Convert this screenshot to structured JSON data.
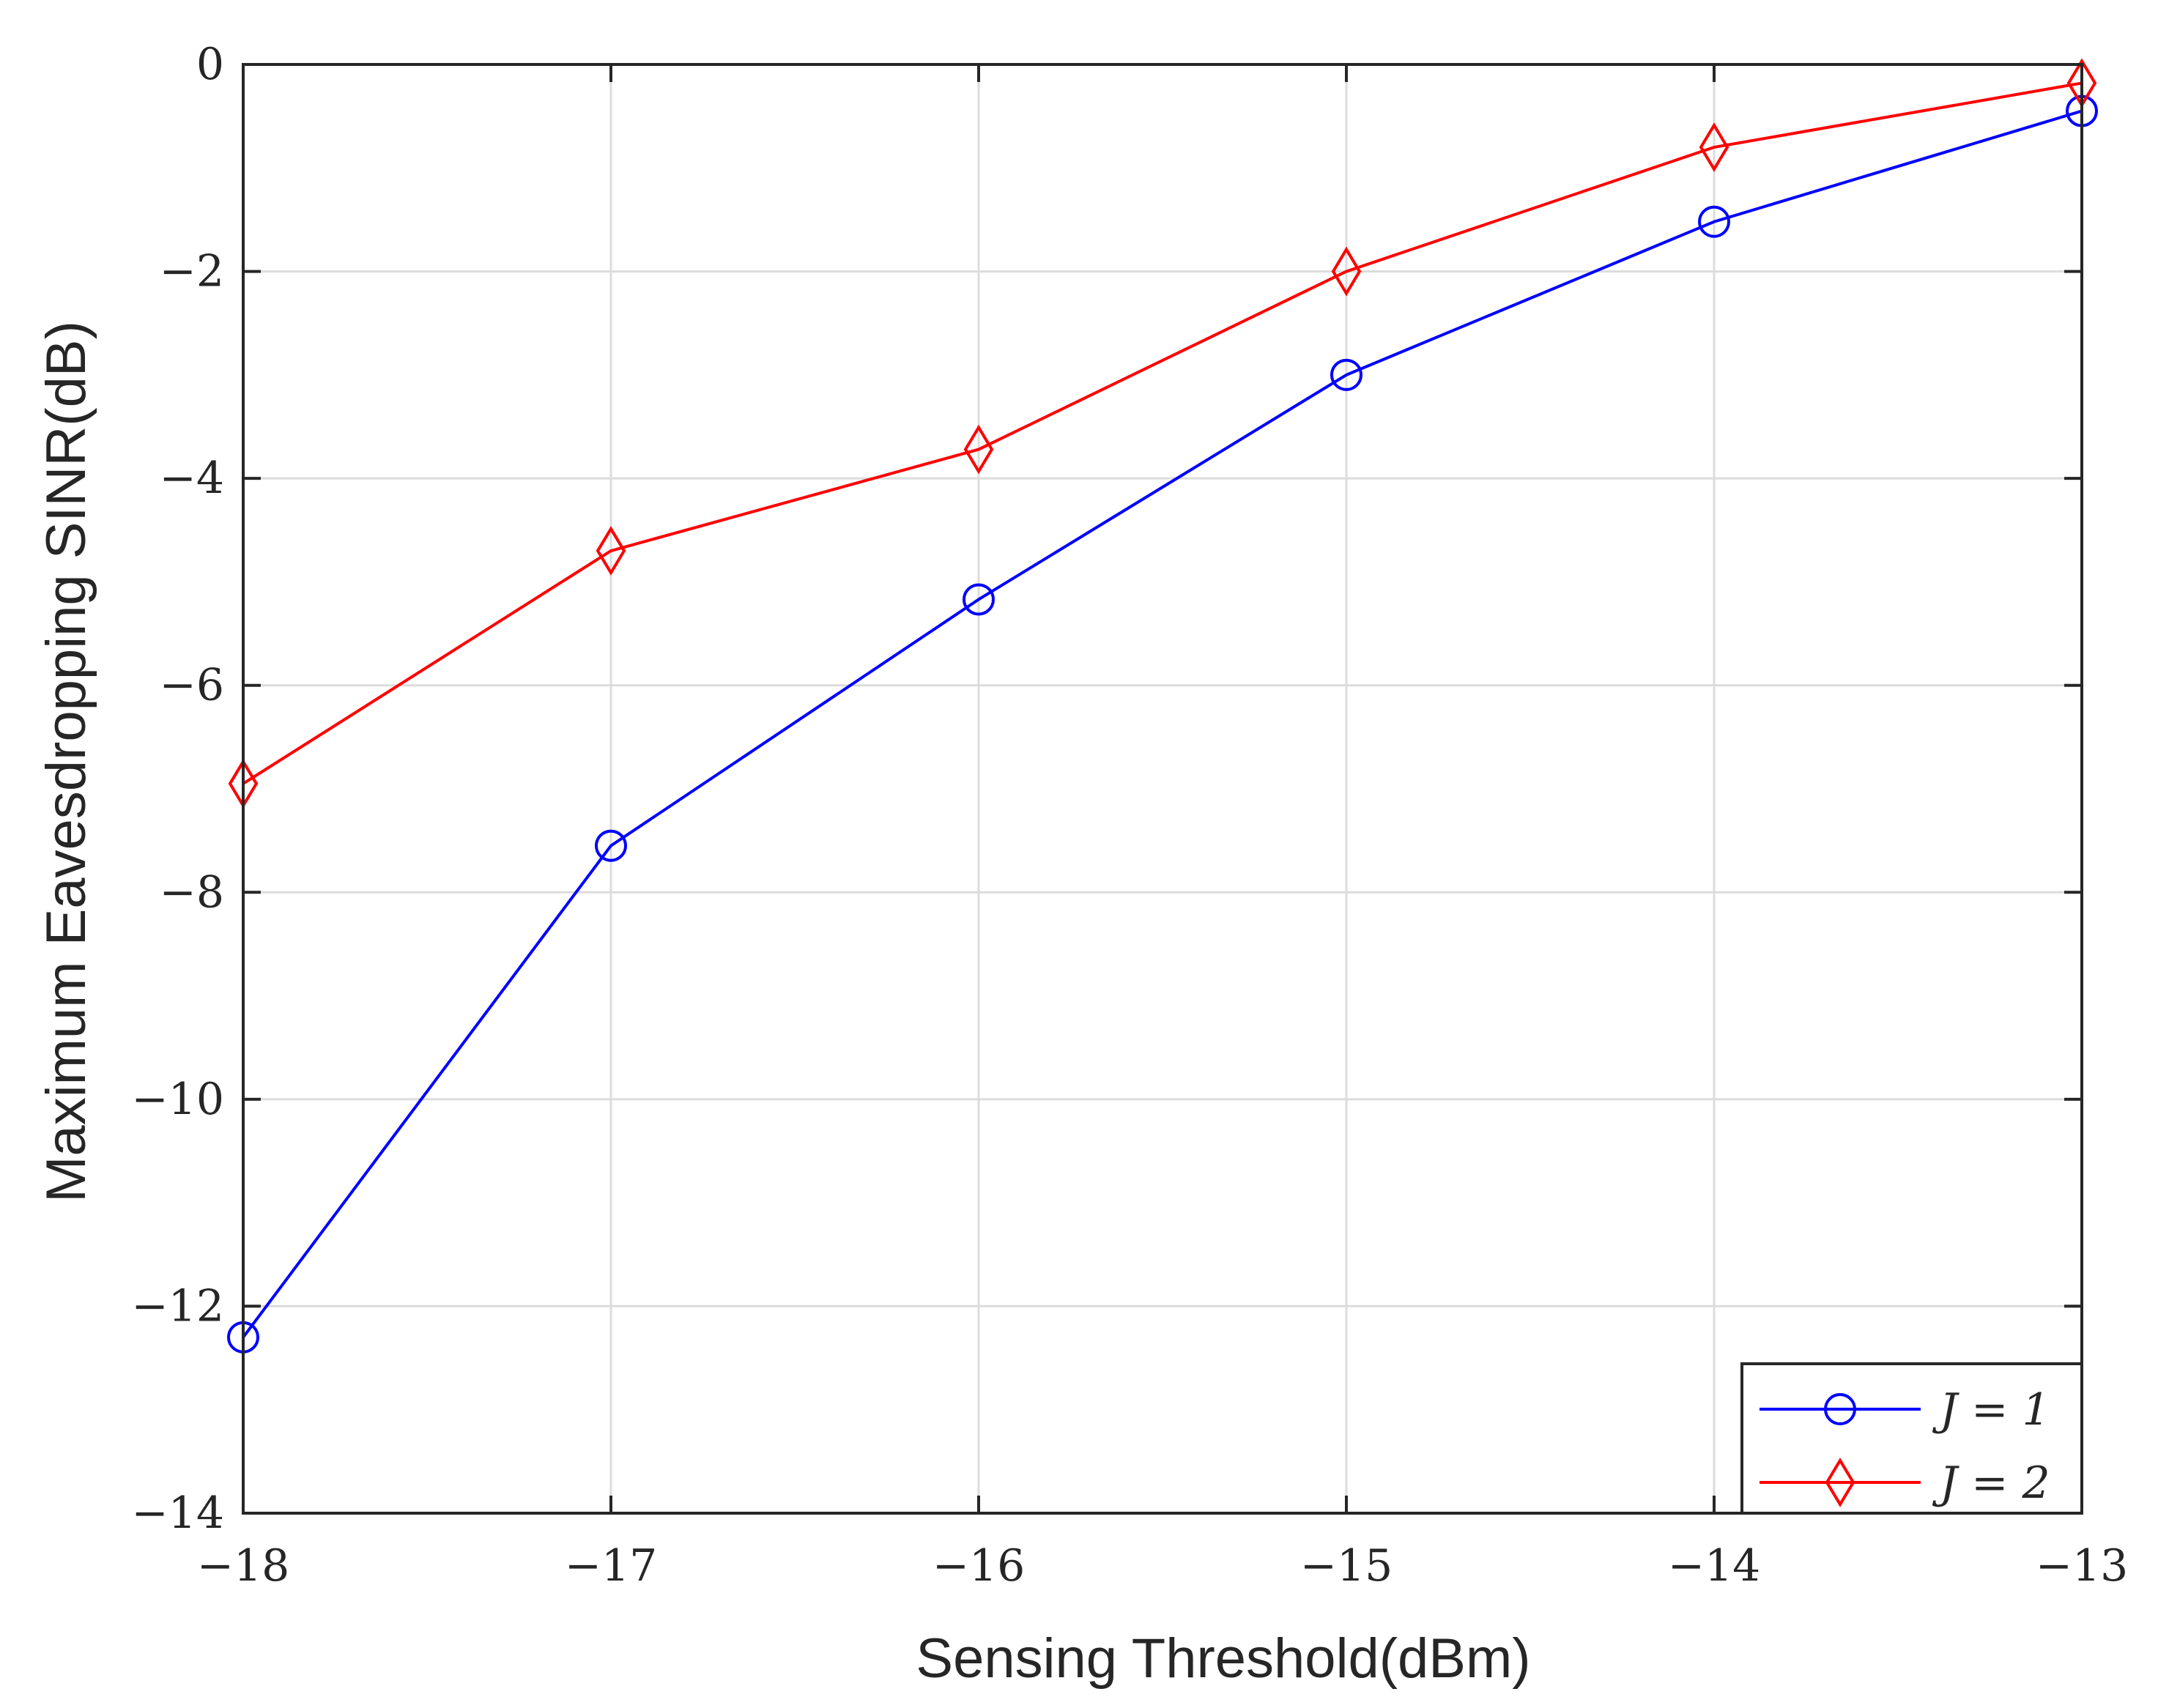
{
  "chart_data": {
    "type": "line",
    "title": "",
    "xlabel": "Sensing Threshold(dBm)",
    "ylabel": "Maximum Eavesdropping SINR(dB)",
    "xlim": [
      -18,
      -13
    ],
    "ylim": [
      -14,
      0
    ],
    "x": [
      -18,
      -17,
      -16,
      -15,
      -14,
      -13
    ],
    "x_tick_labels": [
      "−18",
      "−17",
      "−16",
      "−15",
      "−14",
      "−13"
    ],
    "y_ticks": [
      0,
      -2,
      -4,
      -6,
      -8,
      -10,
      -12,
      -14
    ],
    "y_tick_labels": [
      "0",
      "−2",
      "−4",
      "−6",
      "−8",
      "−10",
      "−12",
      "−14"
    ],
    "grid": true,
    "legend_position": "bottom-right",
    "series": [
      {
        "name": "J = 1",
        "marker": "circle",
        "color": "#0000ff",
        "values": [
          -12.3,
          -7.55,
          -5.17,
          -3.0,
          -1.52,
          -0.45
        ]
      },
      {
        "name": "J = 2",
        "marker": "diamond",
        "color": "#ff0000",
        "values": [
          -6.95,
          -4.7,
          -3.72,
          -2.0,
          -0.8,
          -0.18
        ]
      }
    ]
  }
}
